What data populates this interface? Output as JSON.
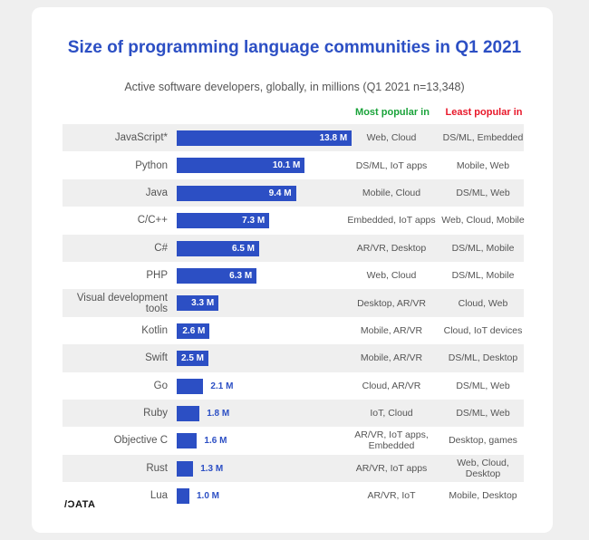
{
  "chart_data": {
    "type": "bar",
    "orientation": "horizontal",
    "title": "Size of programming language communities in Q1 2021",
    "subtitle": "Active software developers, globally, in millions (Q1 2021 n=13,348)",
    "column_headers": {
      "most": "Most popular in",
      "least": "Least popular in"
    },
    "unit_suffix": " M",
    "categories": [
      "JavaScript*",
      "Python",
      "Java",
      "C/C++",
      "C#",
      "PHP",
      "Visual development tools",
      "Kotlin",
      "Swift",
      "Go",
      "Ruby",
      "Objective C",
      "Rust",
      "Lua"
    ],
    "values": [
      13.8,
      10.1,
      9.4,
      7.3,
      6.5,
      6.3,
      3.3,
      2.6,
      2.5,
      2.1,
      1.8,
      1.6,
      1.3,
      1.0
    ],
    "value_labels": [
      "13.8 M",
      "10.1 M",
      "9.4 M",
      "7.3 M",
      "6.5 M",
      "6.3 M",
      "3.3 M",
      "2.6 M",
      "2.5 M",
      "2.1 M",
      "1.8 M",
      "1.6 M",
      "1.3 M",
      "1.0 M"
    ],
    "most_popular_in": [
      "Web, Cloud",
      "DS/ML, IoT apps",
      "Mobile, Cloud",
      "Embedded, IoT apps",
      "AR/VR, Desktop",
      "Web, Cloud",
      "Desktop, AR/VR",
      "Mobile, AR/VR",
      "Mobile, AR/VR",
      "Cloud, AR/VR",
      "IoT, Cloud",
      "AR/VR, IoT apps, Embedded",
      "AR/VR, IoT apps",
      "AR/VR, IoT"
    ],
    "least_popular_in": [
      "DS/ML, Embedded",
      "Mobile, Web",
      "DS/ML, Web",
      "Web, Cloud, Mobile",
      "DS/ML, Mobile",
      "DS/ML, Mobile",
      "Cloud, Web",
      "Cloud, IoT devices",
      "DS/ML, Desktop",
      "DS/ML, Web",
      "DS/ML, Web",
      "Desktop, games",
      "Web, Cloud, Desktop",
      "Mobile, Desktop"
    ],
    "grid": false
  },
  "colors": {
    "bar": "#2c4fc4",
    "most": "#1aa33a",
    "least": "#e8182a"
  },
  "logo": "/DATA"
}
